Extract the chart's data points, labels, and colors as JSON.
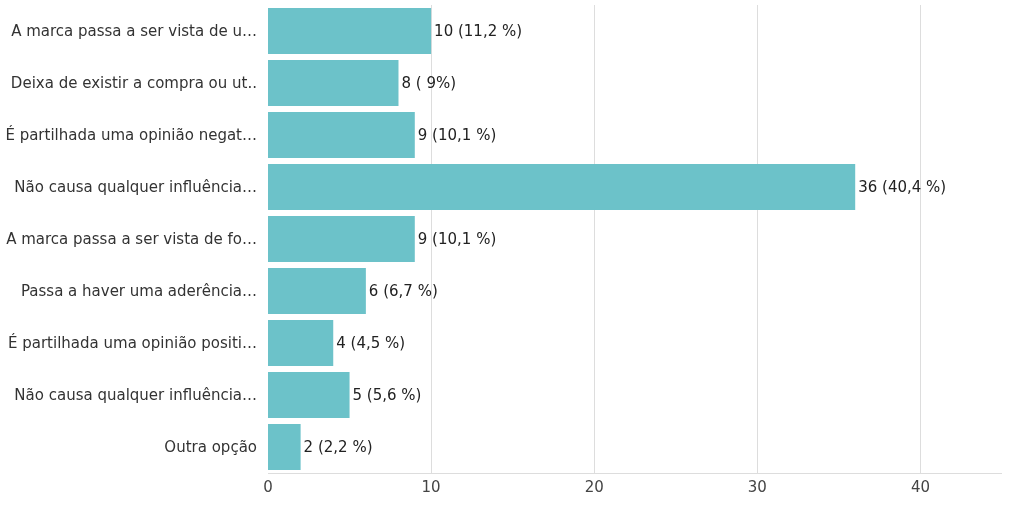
{
  "chart_data": {
    "type": "bar",
    "orientation": "horizontal",
    "categories": [
      "A marca passa a ser vista de u…",
      "Deixa de existir a compra ou ut..",
      "É partilhada uma opinião negat…",
      "Não causa qualquer influência…",
      "A marca passa a ser vista de fo…",
      "Passa a haver uma aderência…",
      "É partilhada uma opinião positi…",
      "Não causa qualquer influência…",
      "Outra opção"
    ],
    "values": [
      10,
      8,
      9,
      36,
      9,
      6,
      4,
      5,
      2
    ],
    "value_labels": [
      "10 (11,2 %)",
      "8 ( 9%)",
      "9 (10,1 %)",
      "36 (40,4 %)",
      "9 (10,1 %)",
      "6 (6,7 %)",
      "4 (4,5 %)",
      "5 (5,6 %)",
      "2 (2,2 %)"
    ],
    "color": "#6cc2c9",
    "xlim": [
      0,
      45
    ],
    "xticks": [
      0,
      10,
      20,
      30,
      40
    ],
    "grid": "x"
  }
}
